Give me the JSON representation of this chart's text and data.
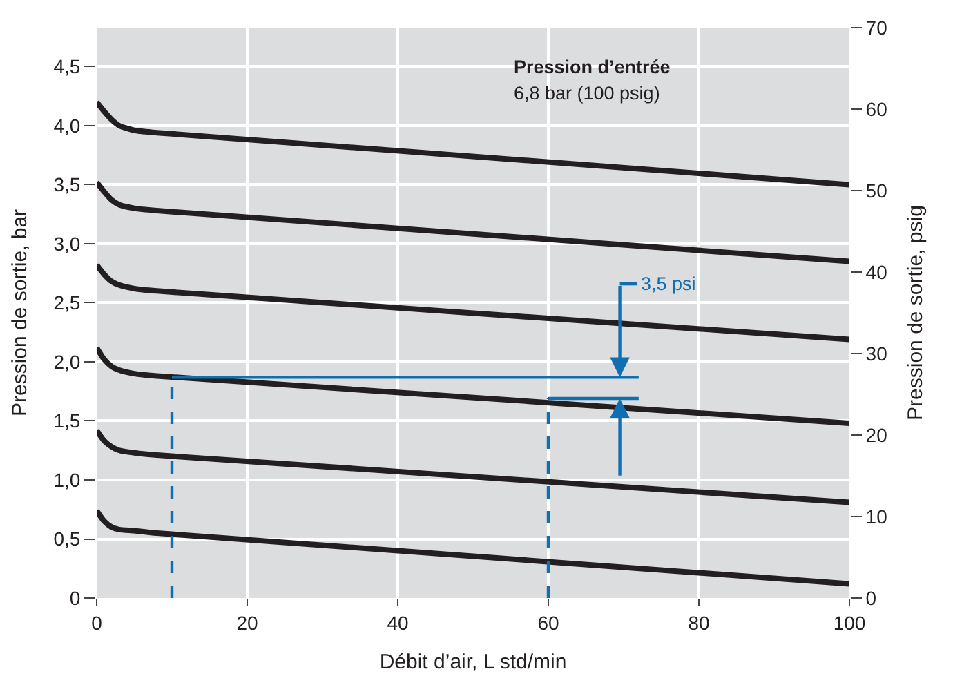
{
  "chart_data": {
    "type": "line",
    "xlabel": "Débit d’air, L std/min",
    "ylabel": "Pression de sortie, bar",
    "y2label": "Pression de sortie, psig",
    "x": [
      0,
      1,
      2,
      3,
      5,
      8,
      100
    ],
    "series": [
      {
        "color": "#231f20",
        "values": [
          4.2,
          4.12,
          4.05,
          4.0,
          3.96,
          3.94,
          3.5
        ]
      },
      {
        "color": "#231f20",
        "values": [
          3.52,
          3.44,
          3.37,
          3.33,
          3.3,
          3.28,
          2.85
        ]
      },
      {
        "color": "#231f20",
        "values": [
          2.82,
          2.74,
          2.68,
          2.65,
          2.62,
          2.6,
          2.19
        ]
      },
      {
        "color": "#231f20",
        "values": [
          2.12,
          2.02,
          1.96,
          1.93,
          1.9,
          1.88,
          1.48
        ]
      },
      {
        "color": "#231f20",
        "values": [
          1.42,
          1.33,
          1.28,
          1.25,
          1.23,
          1.21,
          0.81
        ]
      },
      {
        "color": "#231f20",
        "values": [
          0.74,
          0.65,
          0.6,
          0.58,
          0.57,
          0.55,
          0.12
        ]
      },
      {
        "color": "#0f6fb0",
        "x": [
          10,
          10
        ],
        "values": [
          0,
          1.87
        ],
        "line_style": "dashed"
      },
      {
        "color": "#0f6fb0",
        "x": [
          60,
          60
        ],
        "values": [
          0,
          1.69
        ],
        "line_style": "dashed"
      },
      {
        "color": "#0f6fb0",
        "x": [
          10,
          72
        ],
        "values": [
          1.87,
          1.87
        ],
        "line_style": "solid"
      },
      {
        "color": "#0f6fb0",
        "x": [
          60,
          72
        ],
        "values": [
          1.69,
          1.69
        ],
        "line_style": "solid"
      }
    ],
    "xlim": [
      0,
      100
    ],
    "xticks": [
      0,
      20,
      40,
      60,
      80,
      100
    ],
    "ylim": [
      0,
      4.83
    ],
    "yticks": [
      0,
      {
        "value": 0.5,
        "label": "0,5"
      },
      {
        "value": 1.0,
        "label": "1,0"
      },
      {
        "value": 1.5,
        "label": "1,5"
      },
      {
        "value": 2.0,
        "label": "2,0"
      },
      {
        "value": 2.5,
        "label": "2,5"
      },
      {
        "value": 3.0,
        "label": "3,0"
      },
      {
        "value": 3.5,
        "label": "3,5"
      },
      {
        "value": 4.0,
        "label": "4,0"
      },
      {
        "value": 4.5,
        "label": "4,5"
      }
    ],
    "y2lim": [
      0,
      70
    ],
    "y2ticks": [
      0,
      10,
      20,
      30,
      40,
      50,
      60,
      70
    ],
    "annotations": [
      "Pression d’entrée",
      "6,8 bar (100 psig)",
      {
        "text": "3,5 psi",
        "x": 69.5,
        "y": 1.87
      }
    ],
    "grid": true,
    "line_style": "solid",
    "marker": "none"
  }
}
